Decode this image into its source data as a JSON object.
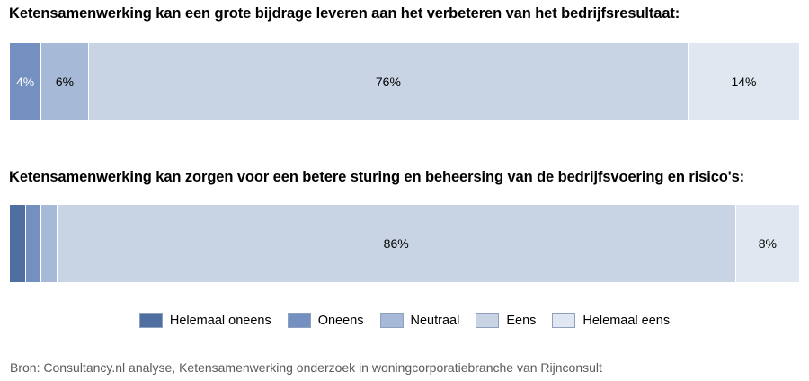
{
  "chart_data": [
    {
      "type": "bar",
      "orientation": "horizontal-stacked-100",
      "title": "Ketensamenwerking kan een grote bijdrage leveren aan het verbeteren van het bedrijfsresultaat:",
      "series": [
        {
          "name": "Helemaal oneens",
          "value": 0,
          "label": ""
        },
        {
          "name": "Oneens",
          "value": 4,
          "label": "4%"
        },
        {
          "name": "Neutraal",
          "value": 6,
          "label": "6%"
        },
        {
          "name": "Eens",
          "value": 76,
          "label": "76%"
        },
        {
          "name": "Helemaal eens",
          "value": 14,
          "label": "14%"
        }
      ]
    },
    {
      "type": "bar",
      "orientation": "horizontal-stacked-100",
      "title": "Ketensamenwerking kan zorgen voor een betere sturing en beheersing van de bedrijfsvoering en risico's:",
      "series": [
        {
          "name": "Helemaal oneens",
          "value": 2,
          "label": ""
        },
        {
          "name": "Oneens",
          "value": 2,
          "label": ""
        },
        {
          "name": "Neutraal",
          "value": 2,
          "label": ""
        },
        {
          "name": "Eens",
          "value": 86,
          "label": "86%"
        },
        {
          "name": "Helemaal eens",
          "value": 8,
          "label": "8%"
        }
      ]
    }
  ],
  "colors": {
    "Helemaal oneens": "#4e6fa0",
    "Oneens": "#7490c0",
    "Neutraal": "#a6b9d6",
    "Eens": "#c8d3e4",
    "Helemaal eens": "#e1e7f0"
  },
  "label_colors": {
    "Helemaal oneens": "#ffffff",
    "Oneens": "#ffffff",
    "Neutraal": "#000000",
    "Eens": "#000000",
    "Helemaal eens": "#000000"
  },
  "legend": {
    "placement": "bottom",
    "items": [
      "Helemaal oneens",
      "Oneens",
      "Neutraal",
      "Eens",
      "Helemaal eens"
    ]
  },
  "source": "Bron: Consultancy.nl analyse, Ketensamenwerking onderzoek in woningcorporatiebranche van Rijnconsult"
}
